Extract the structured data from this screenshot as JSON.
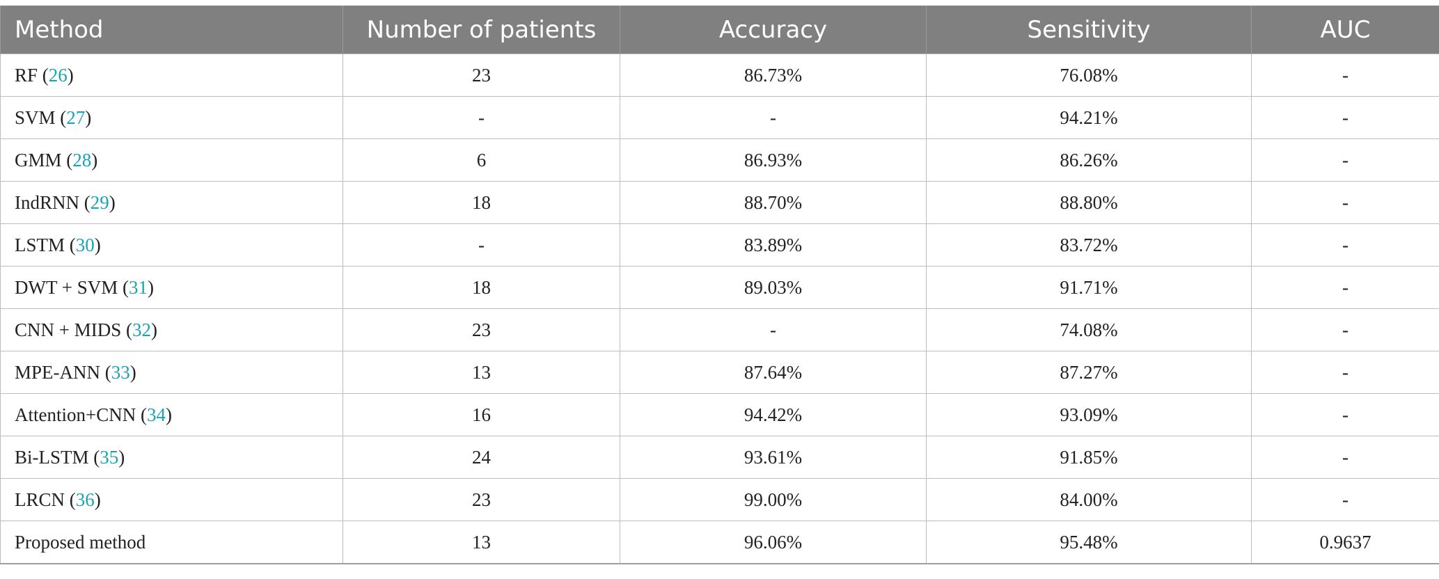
{
  "table": {
    "headers": [
      "Method",
      "Number of patients",
      "Accuracy",
      "Sensitivity",
      "AUC"
    ],
    "rows": [
      {
        "method": "RF",
        "ref": "26",
        "patients": "23",
        "accuracy": "86.73%",
        "sensitivity": "76.08%",
        "auc": "-"
      },
      {
        "method": "SVM",
        "ref": "27",
        "patients": "-",
        "accuracy": "-",
        "sensitivity": "94.21%",
        "auc": "-"
      },
      {
        "method": "GMM",
        "ref": "28",
        "patients": "6",
        "accuracy": "86.93%",
        "sensitivity": "86.26%",
        "auc": "-"
      },
      {
        "method": "IndRNN",
        "ref": "29",
        "patients": "18",
        "accuracy": "88.70%",
        "sensitivity": "88.80%",
        "auc": "-"
      },
      {
        "method": "LSTM",
        "ref": "30",
        "patients": "-",
        "accuracy": "83.89%",
        "sensitivity": "83.72%",
        "auc": "-"
      },
      {
        "method": "DWT + SVM",
        "ref": "31",
        "patients": "18",
        "accuracy": "89.03%",
        "sensitivity": "91.71%",
        "auc": "-"
      },
      {
        "method": "CNN + MIDS",
        "ref": "32",
        "patients": "23",
        "accuracy": "-",
        "sensitivity": "74.08%",
        "auc": "-"
      },
      {
        "method": "MPE-ANN",
        "ref": "33",
        "patients": "13",
        "accuracy": "87.64%",
        "sensitivity": "87.27%",
        "auc": "-"
      },
      {
        "method": "Attention+CNN",
        "ref": "34",
        "patients": "16",
        "accuracy": "94.42%",
        "sensitivity": "93.09%",
        "auc": "-"
      },
      {
        "method": "Bi-LSTM",
        "ref": "35",
        "patients": "24",
        "accuracy": "93.61%",
        "sensitivity": "91.85%",
        "auc": "-"
      },
      {
        "method": "LRCN",
        "ref": "36",
        "patients": "23",
        "accuracy": "99.00%",
        "sensitivity": "84.00%",
        "auc": "-"
      },
      {
        "method": "Proposed method",
        "ref": "",
        "patients": "13",
        "accuracy": "96.06%",
        "sensitivity": "95.48%",
        "auc": "0.9637"
      }
    ]
  },
  "colors": {
    "header_bg": "#808080",
    "header_text": "#ffffff",
    "ref_link": "#1aa3b5",
    "grid": "#bdbdbd"
  }
}
